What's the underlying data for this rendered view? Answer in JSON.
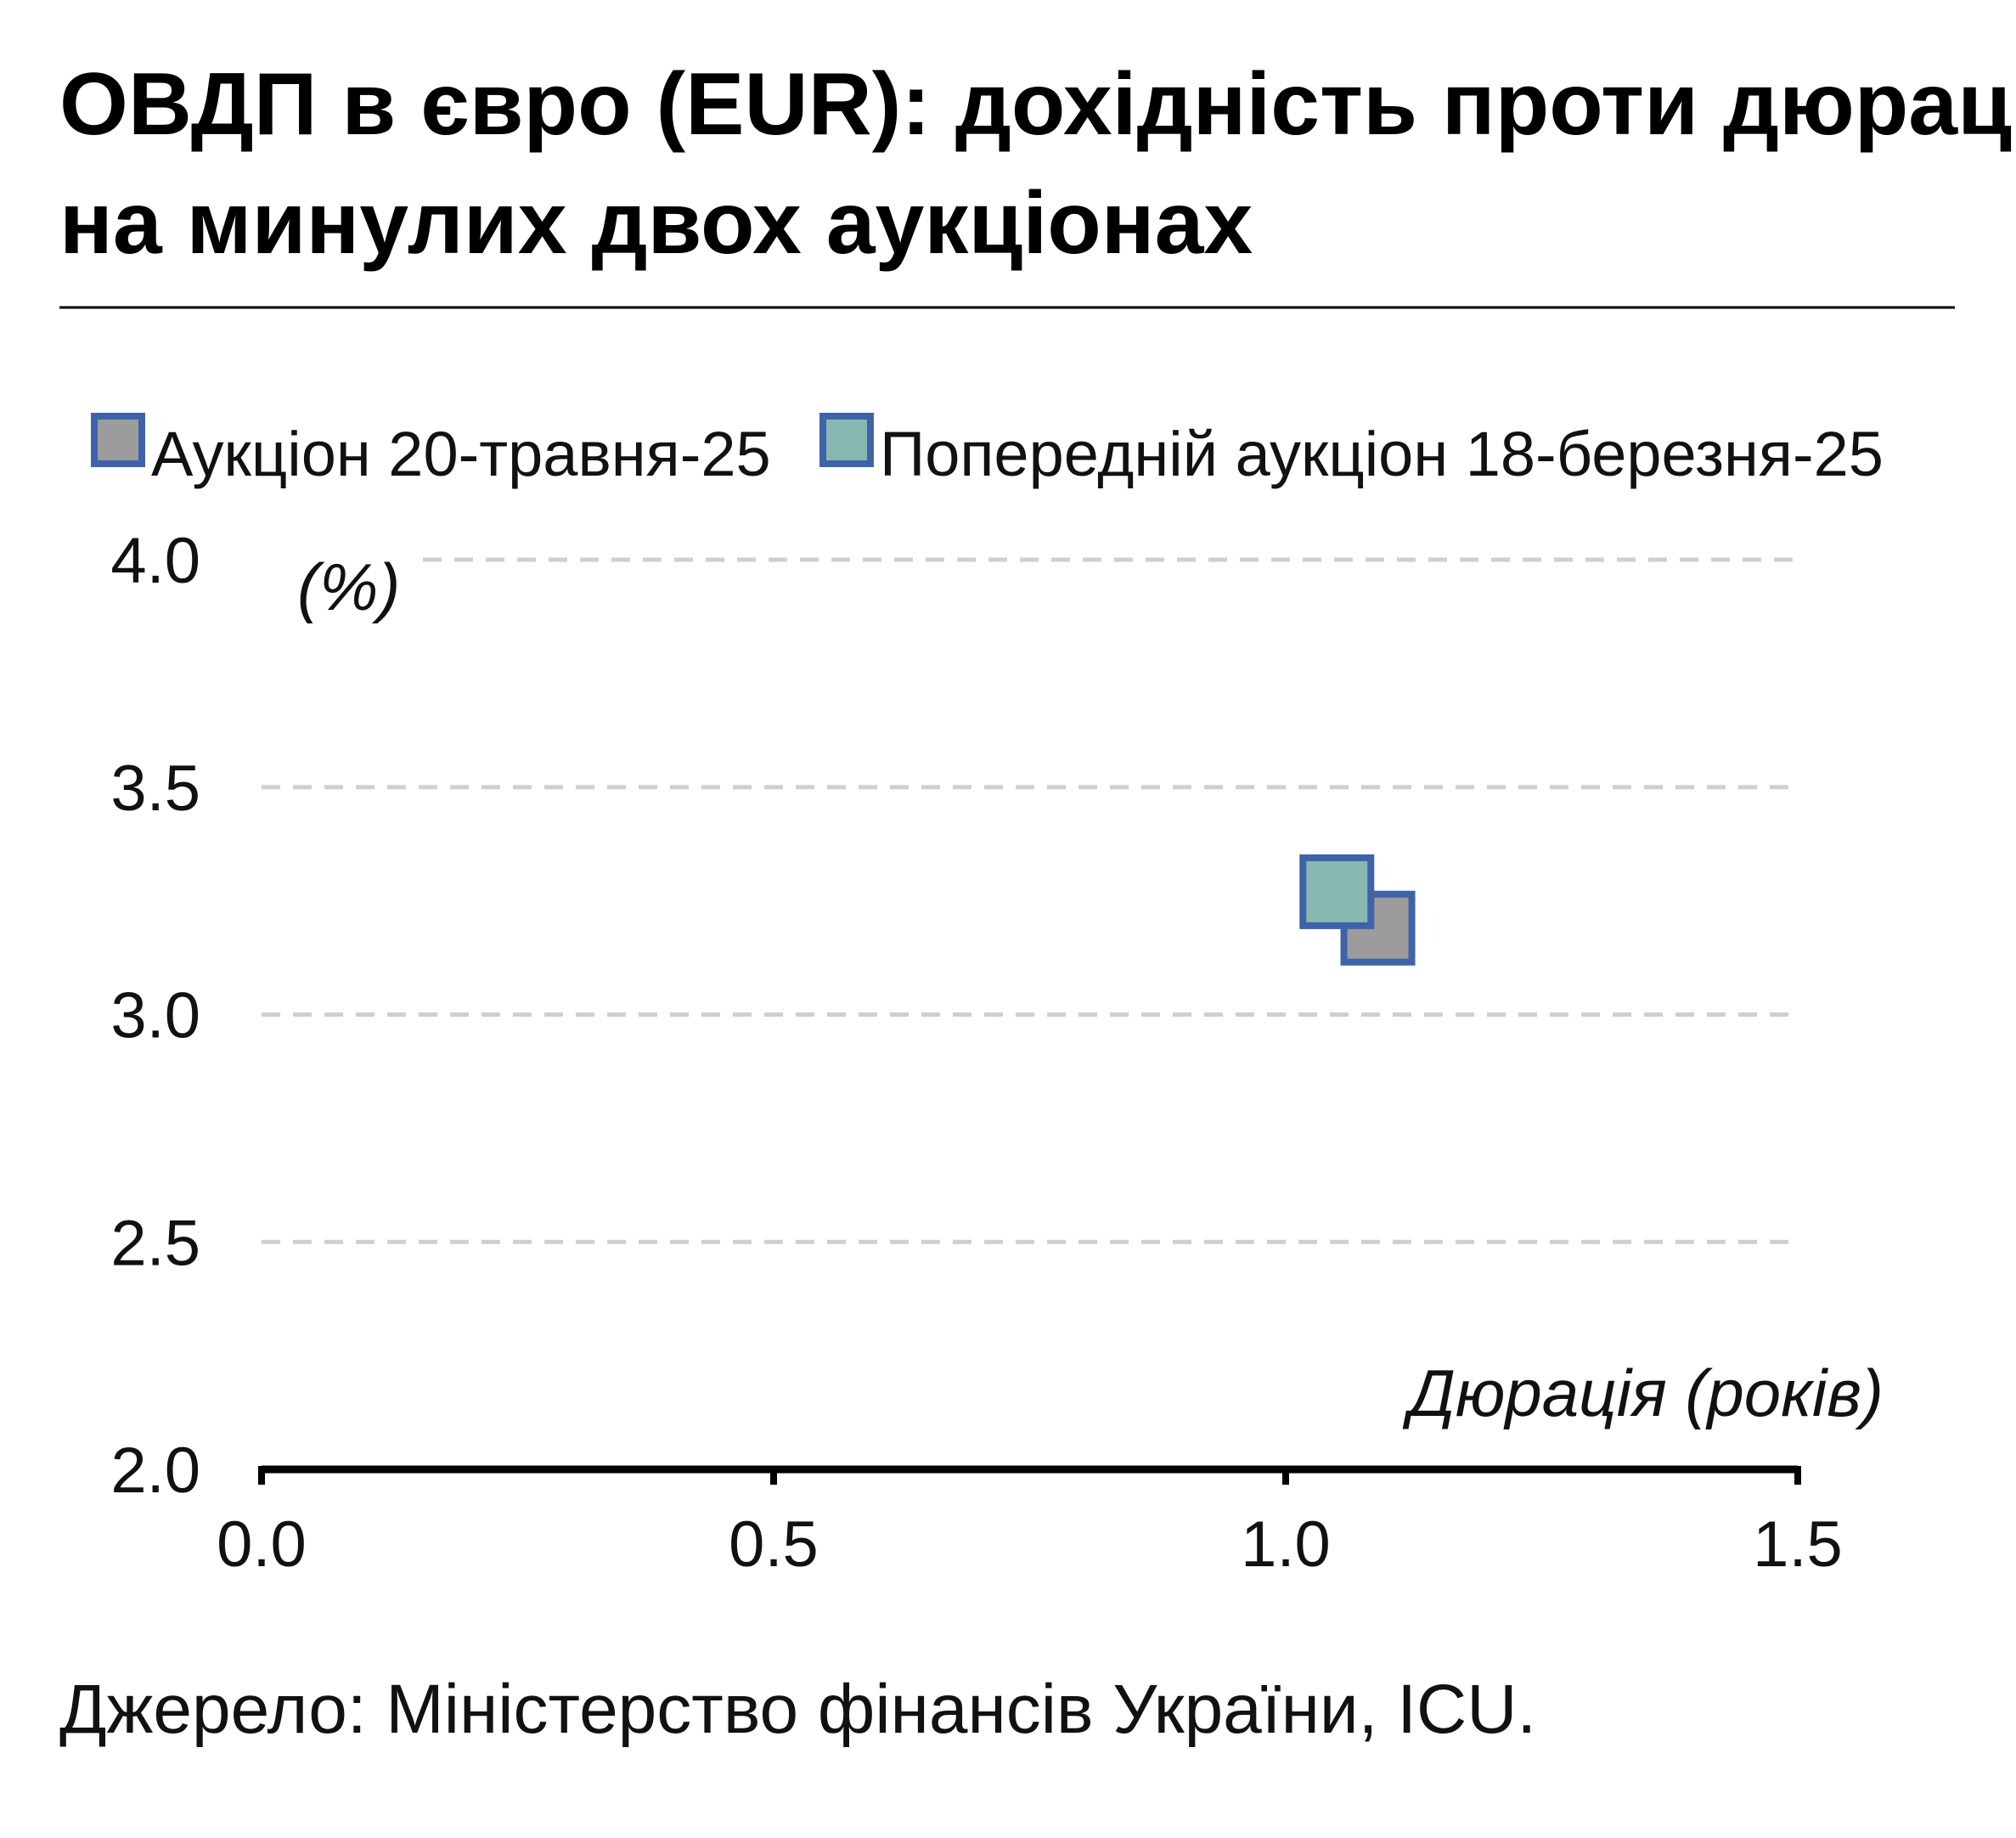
{
  "title_lines": [
    "ОВДП в євро (EUR): дохідність проти дюрації",
    "на минулих двох аукціонах"
  ],
  "legend": [
    {
      "label": "Аукціон 20-травня-25",
      "fill": "#9c9c9c",
      "stroke": "#3e63a8"
    },
    {
      "label": "Попередній аукціон 18-березня-25",
      "fill": "#88b8b2",
      "stroke": "#3e63a8"
    }
  ],
  "y_unit": "(%)",
  "x_title": "Дюрація (років)",
  "y_ticks": [
    "2.0",
    "2.5",
    "3.0",
    "3.5",
    "4.0"
  ],
  "x_ticks": [
    "0.0",
    "0.5",
    "1.0",
    "1.5"
  ],
  "source": "Джерело: Міністерство фінансів України, ICU.",
  "colors": {
    "title": "#000000",
    "grid": "#cfcfcf",
    "axis": "#000000",
    "marker_stroke": "#3e63a8"
  },
  "chart_data": {
    "type": "scatter",
    "title": "ОВДП в євро (EUR): дохідність проти дюрації на минулих двох аукціонах",
    "xlabel": "Дюрація (років)",
    "ylabel": "(%)",
    "xlim": [
      0.0,
      1.5
    ],
    "ylim": [
      2.0,
      4.0
    ],
    "grid": true,
    "legend_position": "top",
    "series": [
      {
        "name": "Аукціон 20-травня-25",
        "x": [
          1.09
        ],
        "y": [
          3.19
        ],
        "color": "#9c9c9c"
      },
      {
        "name": "Попередній аукціон 18-березня-25",
        "x": [
          1.05
        ],
        "y": [
          3.27
        ],
        "color": "#88b8b2"
      }
    ]
  }
}
